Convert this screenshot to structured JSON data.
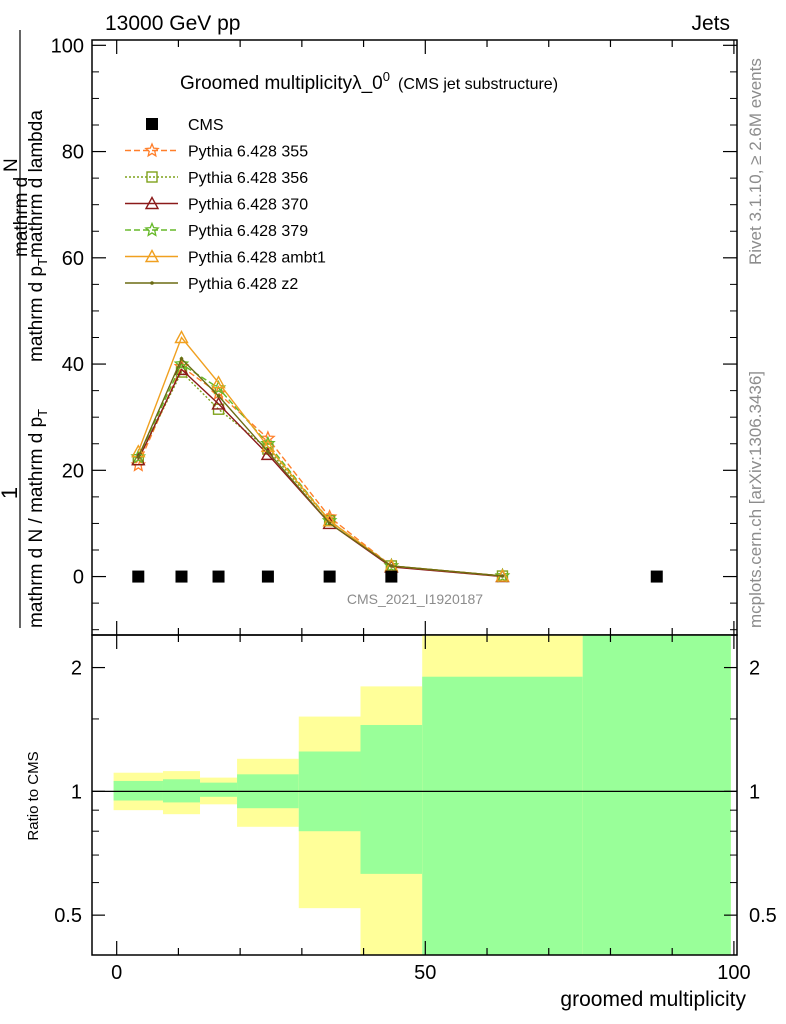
{
  "header": {
    "left": "13000 GeV pp",
    "right": "Jets"
  },
  "side_text": {
    "rivet": "Rivet 3.1.10, ≥ 2.6M events",
    "mcplots": "mcplots.cern.ch [arXiv:1306.3436]"
  },
  "chart_data": [
    {
      "type": "line",
      "title_main": "Groomed multiplicityλ_0",
      "title_sup": "0",
      "title_sub": "(CMS jet substructure)",
      "watermark": "CMS_2021_I1920187",
      "ylabel_top": "1",
      "ylabel_den": "mathrm d N / mathrm d p",
      "ylabel_num": "mathrm d",
      "ylabel_num2": "N",
      "ylabel_den_sub": "T",
      "ylabel_tail": "mathrm d p",
      "ylabel_tail_sub": "T",
      "ylabel_tail2": "mathrm d lambda",
      "ylim": [
        -11,
        101
      ],
      "yticks": [
        0,
        20,
        40,
        60,
        80,
        100
      ],
      "ytick_labels": [
        "0",
        "20",
        "40",
        "60",
        "80",
        "100"
      ],
      "xlim": [
        -4,
        100.5
      ],
      "legend_position": "top-left",
      "series": [
        {
          "name": "CMS",
          "color": "#000000",
          "marker": "square",
          "line": "none",
          "x": [
            3.5,
            10.5,
            16.5,
            24.5,
            34.5,
            44.5,
            87.5
          ],
          "y": [
            0,
            0,
            0,
            0,
            0,
            0,
            0
          ]
        },
        {
          "name": "Pythia 6.428 355",
          "color": "#ff7f2a",
          "marker": "star",
          "line": "dashed",
          "x": [
            3.5,
            10.5,
            16.5,
            24.5,
            34.5,
            44.5,
            62.5
          ],
          "y": [
            21.0,
            39.5,
            34.5,
            26.0,
            11.2,
            2.0,
            0.1
          ]
        },
        {
          "name": "Pythia 6.428 356",
          "color": "#7fa21c",
          "marker": "open-square",
          "line": "dotted",
          "x": [
            3.5,
            10.5,
            16.5,
            24.5,
            34.5,
            44.5,
            62.5
          ],
          "y": [
            22.0,
            38.5,
            31.5,
            24.0,
            10.5,
            2.0,
            0.1
          ]
        },
        {
          "name": "Pythia 6.428 370",
          "color": "#8b1a1a",
          "marker": "open-triangle",
          "line": "solid",
          "x": [
            3.5,
            10.5,
            16.5,
            24.5,
            34.5,
            44.5,
            62.5
          ],
          "y": [
            22.0,
            39.0,
            32.5,
            23.0,
            10.0,
            1.8,
            0.0
          ]
        },
        {
          "name": "Pythia 6.428 379",
          "color": "#66b828",
          "marker": "star",
          "line": "dashed",
          "x": [
            3.5,
            10.5,
            16.5,
            24.5,
            34.5,
            44.5,
            62.5
          ],
          "y": [
            22.5,
            40.0,
            35.5,
            25.0,
            10.5,
            2.0,
            0.1
          ]
        },
        {
          "name": "Pythia 6.428 ambt1",
          "color": "#f0a020",
          "marker": "open-triangle",
          "line": "solid",
          "x": [
            3.5,
            10.5,
            16.5,
            24.5,
            34.5,
            44.5,
            62.5
          ],
          "y": [
            23.5,
            45.0,
            36.5,
            24.5,
            10.5,
            2.0,
            0.1
          ]
        },
        {
          "name": "Pythia 6.428 z2",
          "color": "#6b6b14",
          "marker": "dot",
          "line": "solid",
          "x": [
            3.5,
            10.5,
            16.5,
            24.5,
            34.5,
            44.5,
            62.5
          ],
          "y": [
            22.5,
            41.0,
            34.0,
            23.5,
            10.0,
            2.0,
            0.1
          ]
        }
      ]
    },
    {
      "type": "area",
      "ylabel": "Ratio to CMS",
      "xlabel": "groomed multiplicity",
      "scale_y": "log",
      "ylim": [
        0.4,
        2.4
      ],
      "yticks": [
        0.5,
        1,
        2
      ],
      "ytick_labels": [
        "0.5",
        "1",
        "2"
      ],
      "xticks": [
        0,
        50,
        100
      ],
      "xtick_labels": [
        "0",
        "50",
        "100"
      ],
      "reference_line": 1,
      "colors": {
        "stat": "#99ff99",
        "total": "#ffff99"
      },
      "bands": [
        {
          "x0": -0.5,
          "x1": 7.5,
          "stat": [
            0.95,
            1.06
          ],
          "total": [
            0.9,
            1.11
          ]
        },
        {
          "x0": 7.5,
          "x1": 13.5,
          "stat": [
            0.94,
            1.07
          ],
          "total": [
            0.88,
            1.12
          ]
        },
        {
          "x0": 13.5,
          "x1": 19.5,
          "stat": [
            0.97,
            1.05
          ],
          "total": [
            0.93,
            1.08
          ]
        },
        {
          "x0": 19.5,
          "x1": 29.5,
          "stat": [
            0.91,
            1.1
          ],
          "total": [
            0.82,
            1.2
          ]
        },
        {
          "x0": 29.5,
          "x1": 39.5,
          "stat": [
            0.8,
            1.25
          ],
          "total": [
            0.52,
            1.52
          ]
        },
        {
          "x0": 39.5,
          "x1": 49.5,
          "stat": [
            0.63,
            1.45
          ],
          "total": [
            0.4,
            1.8
          ]
        },
        {
          "x0": 49.5,
          "x1": 75.5,
          "stat": [
            0.4,
            1.9
          ],
          "total": [
            0.4,
            2.4
          ]
        },
        {
          "x0": 75.5,
          "x1": 99.5,
          "stat": [
            0.4,
            2.4
          ],
          "total": [
            0.4,
            2.4
          ]
        }
      ]
    }
  ]
}
